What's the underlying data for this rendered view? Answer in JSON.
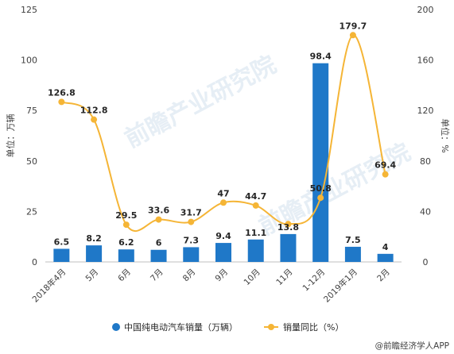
{
  "chart_data": {
    "type": "bar",
    "categories": [
      "2018年4月",
      "5月",
      "6月",
      "7月",
      "8月",
      "9月",
      "10月",
      "11月",
      "1-12月",
      "2019年1月",
      "2月"
    ],
    "series": [
      {
        "name": "中国纯电动汽车销量（万辆）",
        "type": "bar",
        "axis": "left",
        "values": [
          6.5,
          8.2,
          6.2,
          6,
          7.3,
          9.4,
          11.1,
          13.8,
          98.4,
          7.5,
          4
        ],
        "labels": [
          "6.5",
          "8.2",
          "6.2",
          "6",
          "7.3",
          "9.4",
          "11.1",
          "13.8",
          "98.4",
          "7.5",
          "4"
        ]
      },
      {
        "name": "销量同比（%）",
        "type": "line",
        "axis": "right",
        "values": [
          126.8,
          112.8,
          29.5,
          33.6,
          31.7,
          47,
          44.7,
          30,
          50.8,
          179.7,
          69.4
        ],
        "labels": [
          "126.8",
          "112.8",
          "29.5",
          "33.6",
          "31.7",
          "47",
          "44.7",
          "",
          "50.8",
          "179.7",
          "69.4"
        ]
      }
    ],
    "ylabel": "单位：万辆",
    "y2label": "单位：%",
    "ylim": [
      0,
      125
    ],
    "y2lim": [
      0,
      200
    ],
    "yticks": [
      "0",
      "25",
      "50",
      "75",
      "100",
      "125"
    ],
    "y2ticks": [
      "0",
      "40",
      "80",
      "120",
      "160",
      "200"
    ],
    "grid": false,
    "legend": "bottom",
    "colors": {
      "bar": "#1f78c8",
      "line": "#f5b536"
    }
  },
  "watermark": "前瞻产业研究院",
  "source": "@前瞻经济学人APP"
}
